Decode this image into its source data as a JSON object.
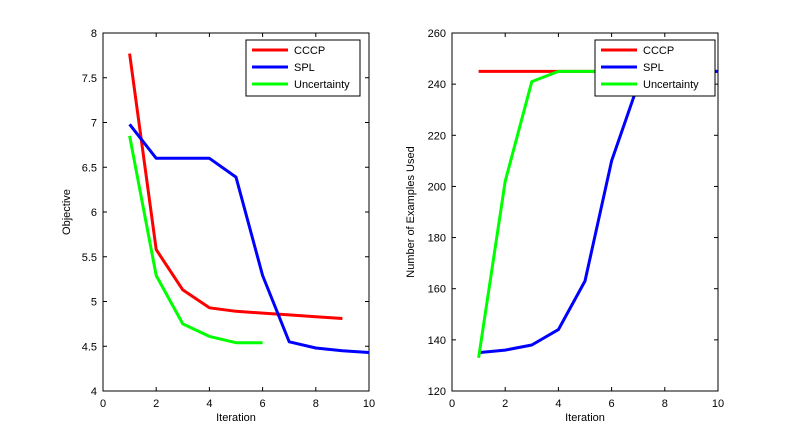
{
  "chart_data": [
    {
      "type": "line",
      "title": "",
      "xlabel": "Iteration",
      "ylabel": "Objective",
      "xlim": [
        0,
        10
      ],
      "ylim": [
        4,
        8
      ],
      "xticks": [
        0,
        2,
        4,
        6,
        8,
        10
      ],
      "yticks": [
        4,
        4.5,
        5,
        5.5,
        6,
        6.5,
        7,
        7.5,
        8
      ],
      "xtick_labels": [
        "0",
        "2",
        "4",
        "6",
        "8",
        "10"
      ],
      "ytick_labels": [
        "4",
        "4.5",
        "5",
        "5.5",
        "6",
        "6.5",
        "7",
        "7.5",
        "8"
      ],
      "grid": false,
      "legend": "top-right",
      "series": [
        {
          "name": "CCCP",
          "color": "#ff0000",
          "x": [
            1,
            2,
            3,
            4,
            5,
            6,
            7,
            8,
            9
          ],
          "y": [
            7.77,
            5.58,
            5.13,
            4.93,
            4.89,
            4.87,
            4.85,
            4.83,
            4.81
          ]
        },
        {
          "name": "SPL",
          "color": "#0000ff",
          "x": [
            1,
            2,
            3,
            4,
            5,
            6,
            7,
            8,
            9,
            10
          ],
          "y": [
            6.98,
            6.6,
            6.6,
            6.6,
            6.39,
            5.29,
            4.55,
            4.48,
            4.45,
            4.43
          ]
        },
        {
          "name": "Uncertainty",
          "color": "#00ff00",
          "x": [
            1,
            2,
            3,
            4,
            5,
            6
          ],
          "y": [
            6.85,
            5.29,
            4.75,
            4.61,
            4.54,
            4.54
          ]
        }
      ]
    },
    {
      "type": "line",
      "title": "",
      "xlabel": "Iteration",
      "ylabel": "Number of Examples Used",
      "xlim": [
        0,
        10
      ],
      "ylim": [
        120,
        260
      ],
      "xticks": [
        0,
        2,
        4,
        6,
        8,
        10
      ],
      "yticks": [
        120,
        140,
        160,
        180,
        200,
        220,
        240,
        260
      ],
      "xtick_labels": [
        "0",
        "2",
        "4",
        "6",
        "8",
        "10"
      ],
      "ytick_labels": [
        "120",
        "140",
        "160",
        "180",
        "200",
        "220",
        "240",
        "260"
      ],
      "grid": false,
      "legend": "top-right",
      "series": [
        {
          "name": "CCCP",
          "color": "#ff0000",
          "x": [
            1,
            2,
            3,
            4,
            5,
            6,
            7,
            8,
            9,
            10
          ],
          "y": [
            245,
            245,
            245,
            245,
            245,
            245,
            245,
            245,
            245,
            245
          ]
        },
        {
          "name": "SPL",
          "color": "#0000ff",
          "x": [
            1,
            2,
            3,
            4,
            5,
            6,
            7,
            8,
            9,
            10
          ],
          "y": [
            135,
            136,
            138,
            144,
            163,
            210,
            240,
            245,
            245,
            245
          ]
        },
        {
          "name": "Uncertainty",
          "color": "#00ff00",
          "x": [
            1,
            2,
            3,
            4,
            5,
            6
          ],
          "y": [
            133,
            202,
            241,
            245,
            245,
            245
          ]
        }
      ]
    }
  ]
}
